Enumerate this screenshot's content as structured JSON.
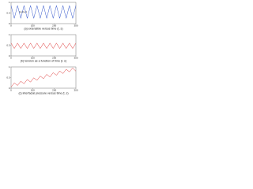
{
  "chart_data": [
    {
      "type": "line",
      "caption": "(a) extensible versus time (t, s)",
      "annotation": "Cycle 1",
      "x": [
        0,
        15,
        30,
        45,
        60,
        75,
        90,
        105,
        120,
        135,
        150,
        165,
        180,
        195,
        210,
        225,
        240,
        255,
        270,
        285,
        300
      ],
      "series": [
        {
          "color": "#3355cc",
          "values": [
            0.85,
            0.25,
            0.85,
            0.25,
            0.85,
            0.25,
            0.85,
            0.25,
            0.85,
            0.25,
            0.85,
            0.25,
            0.85,
            0.25,
            0.85,
            0.25,
            0.85,
            0.25,
            0.85,
            0.25,
            0.85
          ]
        }
      ],
      "xlim": [
        0,
        300
      ],
      "ylim": [
        0,
        1
      ],
      "xticks": [
        0,
        100,
        200,
        300
      ],
      "yticks": [
        0,
        0.5,
        1
      ]
    },
    {
      "type": "line",
      "caption": "(b) tension as a function of time (t, s)",
      "x": [
        0,
        15,
        30,
        45,
        60,
        75,
        90,
        105,
        120,
        135,
        150,
        165,
        180,
        195,
        210,
        225,
        240,
        255,
        270,
        285,
        300
      ],
      "series": [
        {
          "color": "#dd3333",
          "values": [
            0.6,
            0.35,
            0.6,
            0.35,
            0.6,
            0.35,
            0.6,
            0.35,
            0.6,
            0.35,
            0.6,
            0.35,
            0.6,
            0.35,
            0.6,
            0.35,
            0.6,
            0.35,
            0.6,
            0.35,
            0.6
          ]
        }
      ],
      "xlim": [
        0,
        300
      ],
      "ylim": [
        0,
        1
      ],
      "xticks": [
        0,
        100,
        200,
        300
      ],
      "yticks": [
        0,
        0.5,
        1
      ]
    },
    {
      "type": "line",
      "caption": "(c) interfacial pressure versus time (t, s)",
      "x": [
        0,
        15,
        30,
        45,
        60,
        75,
        90,
        105,
        120,
        135,
        150,
        165,
        180,
        195,
        210,
        225,
        240,
        255,
        270,
        285,
        300
      ],
      "series": [
        {
          "color": "#dd3333",
          "values": [
            0.05,
            0.25,
            0.13,
            0.33,
            0.21,
            0.41,
            0.29,
            0.49,
            0.37,
            0.57,
            0.45,
            0.65,
            0.53,
            0.73,
            0.61,
            0.81,
            0.69,
            0.89,
            0.77,
            0.95,
            0.8
          ]
        }
      ],
      "xlim": [
        0,
        300
      ],
      "ylim": [
        0,
        1
      ],
      "xticks": [
        0,
        100,
        200,
        300
      ],
      "yticks": [
        0,
        0.5,
        1
      ]
    }
  ]
}
